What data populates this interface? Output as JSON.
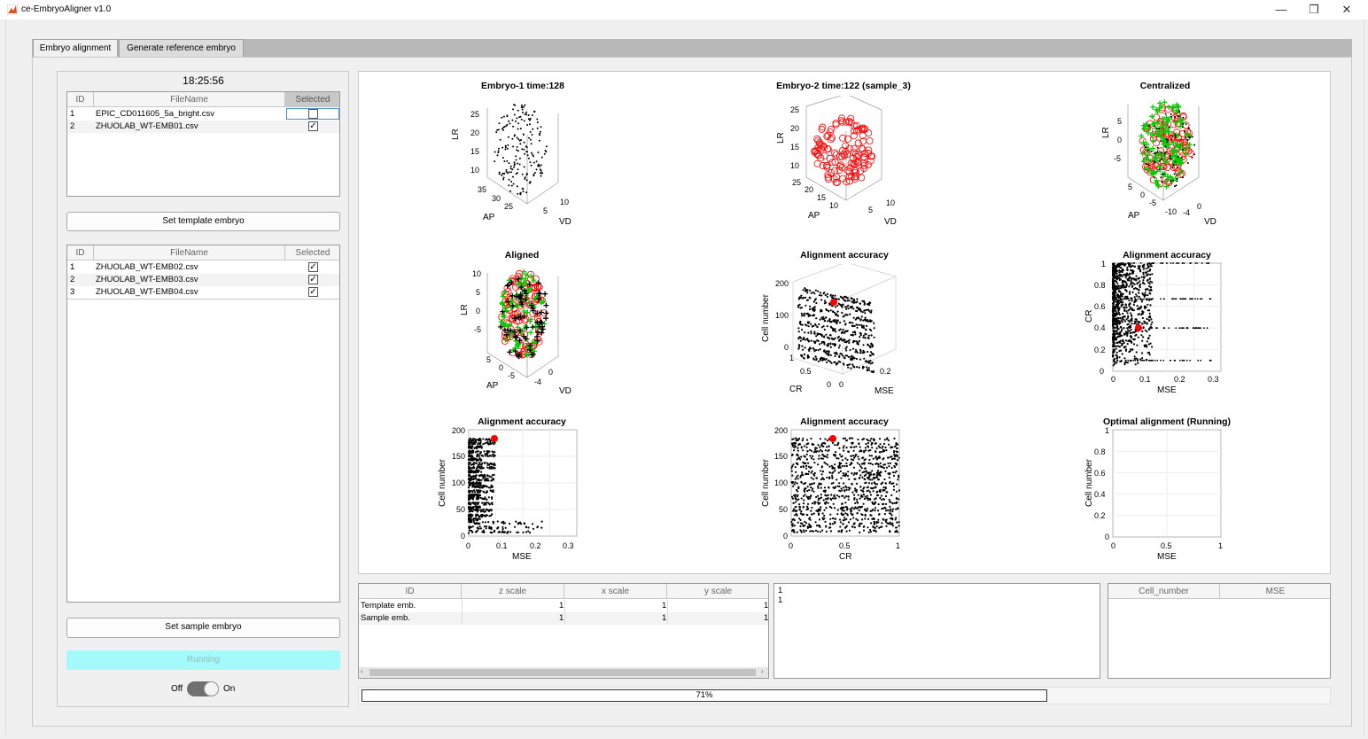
{
  "window": {
    "title": "ce-EmbryoAligner v1.0",
    "controls": [
      "—",
      "❐",
      "✕"
    ]
  },
  "tabs": [
    {
      "label": "Embryo alignment"
    },
    {
      "label": "Generate reference embryo"
    }
  ],
  "left": {
    "clock": "18:25:56",
    "template_table": {
      "headers": [
        "ID",
        "FileName",
        "Selected"
      ],
      "rows": [
        {
          "id": "1",
          "file": "EPIC_CD011605_5a_bright.csv",
          "selected": false
        },
        {
          "id": "2",
          "file": "ZHUOLAB_WT-EMB01.csv",
          "selected": true
        }
      ]
    },
    "set_template_label": "Set template embryo",
    "sample_table": {
      "headers": [
        "ID",
        "FileName",
        "Selected"
      ],
      "rows": [
        {
          "id": "1",
          "file": "ZHUOLAB_WT-EMB02.csv",
          "selected": true
        },
        {
          "id": "2",
          "file": "ZHUOLAB_WT-EMB03.csv",
          "selected": true
        },
        {
          "id": "3",
          "file": "ZHUOLAB_WT-EMB04.csv",
          "selected": true
        }
      ]
    },
    "set_sample_label": "Set sample embryo",
    "running_label": "Running",
    "toggle": {
      "off_label": "Off",
      "on_label": "On",
      "state": "on"
    }
  },
  "plots": {
    "p1": {
      "title": "Embryo-1 time:128",
      "x_label": "AP",
      "y_label": "VD",
      "z_label": "LR",
      "z_ticks": [
        "25",
        "20",
        "15",
        "10"
      ],
      "x_ticks": [
        "35",
        "30",
        "25"
      ],
      "y_ticks": [
        "10",
        "5"
      ]
    },
    "p2": {
      "title": "Embryo-2 time:122 (sample_3)",
      "x_label": "AP",
      "y_label": "VD",
      "z_label": "LR",
      "z_ticks": [
        "25",
        "20",
        "15",
        "10"
      ],
      "x_ticks": [
        "25",
        "20",
        "15",
        "10"
      ],
      "y_ticks": [
        "10",
        "5"
      ]
    },
    "p3": {
      "title": "Centralized",
      "x_label": "AP",
      "y_label": "VD",
      "z_label": "LR",
      "z_ticks": [
        "5",
        "0",
        "-5"
      ],
      "x_ticks": [
        "5",
        "0",
        "-5",
        "-10"
      ],
      "y_ticks": [
        "0",
        "-4"
      ]
    },
    "p4": {
      "title": "Aligned",
      "x_label": "AP",
      "y_label": "VD",
      "z_label": "LR",
      "z_ticks": [
        "10",
        "5",
        "0",
        "-5"
      ],
      "x_ticks": [
        "5",
        "0",
        "-5"
      ],
      "y_ticks": [
        "0",
        "-4"
      ]
    },
    "p5": {
      "title": "Alignment accuracy",
      "x_label": "CR",
      "y_label": "MSE",
      "z_label": "Cell number",
      "z_ticks": [
        "200",
        "100",
        "0"
      ],
      "x_ticks": [
        "1",
        "0.5",
        "0"
      ],
      "y_ticks": [
        "0.2",
        "0"
      ]
    },
    "p6": {
      "title": "Alignment accuracy",
      "x_label": "MSE",
      "y_label": "CR",
      "x_ticks": [
        "0",
        "0.1",
        "0.2",
        "0.3"
      ],
      "y_ticks": [
        "0",
        "0.2",
        "0.4",
        "0.6",
        "0.8",
        "1"
      ]
    },
    "p7": {
      "title": "Alignment accuracy",
      "x_label": "MSE",
      "y_label": "Cell number",
      "x_ticks": [
        "0",
        "0.1",
        "0.2",
        "0.3"
      ],
      "y_ticks": [
        "0",
        "50",
        "100",
        "150",
        "200"
      ]
    },
    "p8": {
      "title": "Alignment accuracy",
      "x_label": "CR",
      "y_label": "Cell number",
      "x_ticks": [
        "0",
        "0.5",
        "1"
      ],
      "y_ticks": [
        "0",
        "50",
        "100",
        "150",
        "200"
      ]
    },
    "p9": {
      "title": "Optimal alignment (Running)",
      "x_label": "MSE",
      "y_label": "Cell number",
      "x_ticks": [
        "0",
        "0.5",
        "1"
      ],
      "y_ticks": [
        "0",
        "0.2",
        "0.4",
        "0.6",
        "0.8",
        "1"
      ]
    }
  },
  "scale_table": {
    "headers": [
      "ID",
      "z scale",
      "x scale",
      "y scale"
    ],
    "rows": [
      {
        "id": "Template emb.",
        "z": "1",
        "x": "1",
        "y": "1"
      },
      {
        "id": "Sample emb.",
        "z": "1",
        "x": "1",
        "y": "1"
      }
    ]
  },
  "log_lines": [
    "1",
    "1"
  ],
  "result_table": {
    "headers": [
      "Cell_number",
      "MSE"
    ]
  },
  "progress": {
    "value": 0.71,
    "label": "71%"
  },
  "colors": {
    "running_bg": "#a4fafa",
    "marker_red": "#ff0000",
    "marker_green": "#00cc00",
    "toggle": "#707070"
  }
}
